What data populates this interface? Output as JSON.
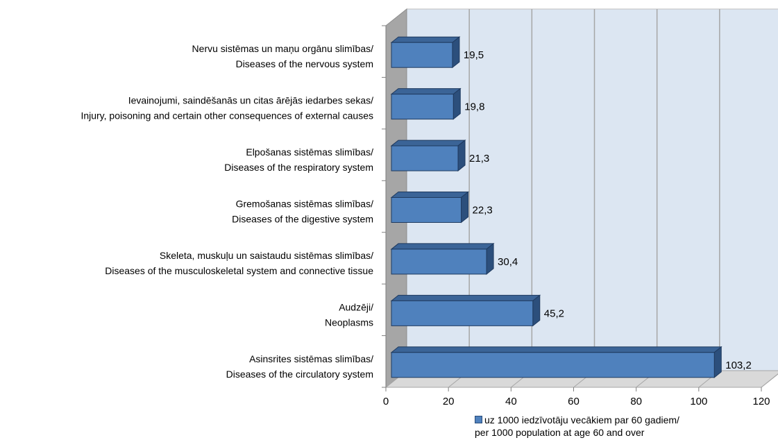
{
  "chart_data": {
    "type": "bar",
    "orientation": "horizontal",
    "three_d": true,
    "categories": [
      "Nervu sistēmas un maņu orgānu slimības/\nDiseases of the nervous system",
      "Ievainojumi, saindēšanās un citas ārējās iedarbes sekas/\nInjury, poisoning and certain other consequences of external causes",
      "Elpošanas sistēmas slimības/\nDiseases of the respiratory system",
      "Gremošanas sistēmas slimības/\nDiseases of the digestive system",
      "Skeleta, muskuļu un saistaudu sistēmas slimības/\nDiseases of the musculoskeletal system and connective tissue",
      "Audzēji/\nNeoplasms",
      "Asinsrites sistēmas slimības/\nDiseases of the circulatory system"
    ],
    "series": [
      {
        "name": "uz 1000 iedzīvotāju vecākiem par 60 gadiem/\nper 1000 population at age 60 and over",
        "values": [
          19.5,
          19.8,
          21.3,
          22.3,
          30.4,
          45.2,
          103.2
        ],
        "value_labels": [
          "19,5",
          "19,8",
          "21,3",
          "22,3",
          "30,4",
          "45,2",
          "103,2"
        ],
        "color": "#4f81bd"
      }
    ],
    "xlim": [
      0,
      120
    ],
    "xticks": [
      0,
      20,
      40,
      60,
      80,
      100,
      120
    ],
    "grid": true,
    "legend": "bottom",
    "colors": {
      "bar_front": "#4f81bd",
      "bar_top": "#3b6497",
      "bar_side": "#2c4f7c",
      "bar_edge": "#1f3a5f",
      "wall": "#dce6f2",
      "wall_side": "#a6a6a6",
      "floor": "#d9d9d9",
      "gridline": "#a6a6a6"
    }
  }
}
